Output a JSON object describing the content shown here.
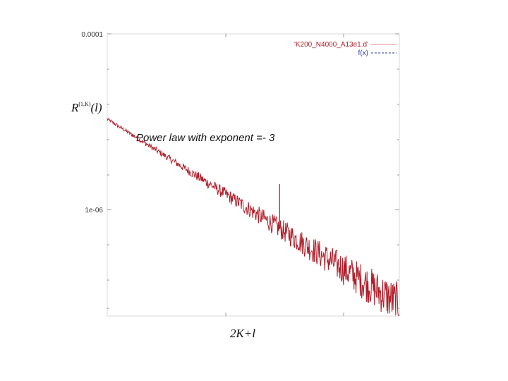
{
  "chart_data": {
    "type": "line",
    "y_scale": "log",
    "yticks": [
      {
        "value": 0.0001,
        "label": "0.0001"
      },
      {
        "value": 1e-06,
        "label": "1e-06"
      }
    ],
    "ylabel": {
      "main": "R",
      "sup": "(1,K)",
      "suffix": "(l)"
    },
    "xlabel": "2K+l",
    "annotation": "Power law with exponent =- 3",
    "legend_position": "top-right",
    "series": [
      {
        "name": "'K200_N4000_A13e1.d'",
        "color": "#b01e2a",
        "legend_line_color": "#e8a0a4",
        "noisy": true,
        "y_start": 1.07e-05,
        "y_end": 8.3e-08,
        "spike": {
          "at_fraction": 0.59,
          "value": 1.95e-06
        }
      },
      {
        "name": "f(x)",
        "color": "#2a3a9a",
        "style": "dashed",
        "visible_on_plot": false
      }
    ],
    "grid": false
  }
}
